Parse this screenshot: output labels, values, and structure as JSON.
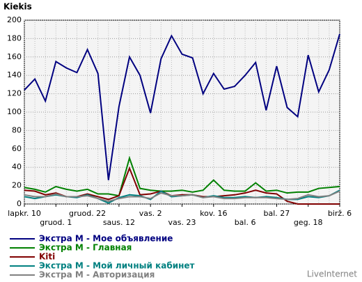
{
  "chart_data": {
    "type": "line",
    "title": "Kiekis",
    "source": "LiveInternet",
    "categories": [
      "lapkr. 10",
      null,
      null,
      "gruod. 1",
      null,
      null,
      "gruod. 22",
      null,
      null,
      "saus. 12",
      null,
      null,
      "vas. 2",
      null,
      null,
      "vas. 23",
      null,
      null,
      "kov. 16",
      null,
      null,
      "bal. 6",
      null,
      null,
      "bal. 27",
      null,
      null,
      "geg. 18",
      null,
      null,
      "birž. 6"
    ],
    "series": [
      {
        "name": "Экстра М - Мое объявление",
        "color": "#000080",
        "values": [
          124,
          136,
          112,
          155,
          148,
          143,
          168,
          142,
          26,
          106,
          160,
          140,
          99,
          158,
          183,
          163,
          159,
          120,
          142,
          125,
          128,
          140,
          154,
          102,
          150,
          105,
          95,
          162,
          122,
          146,
          185
        ]
      },
      {
        "name": "Экстра М - Главная",
        "color": "#008000",
        "values": [
          18,
          16,
          13,
          19,
          16,
          14,
          16,
          11,
          11,
          9,
          50,
          17,
          15,
          14,
          14,
          15,
          13,
          15,
          26,
          15,
          14,
          14,
          23,
          14,
          15,
          12,
          13,
          13,
          17,
          18,
          19
        ]
      },
      {
        "name": "Kiti",
        "color": "#800000",
        "values": [
          15,
          14,
          10,
          12,
          8,
          8,
          11,
          8,
          5,
          9,
          39,
          10,
          11,
          14,
          9,
          10,
          10,
          8,
          8,
          9,
          10,
          12,
          15,
          12,
          11,
          3,
          0,
          0,
          0,
          0,
          0
        ]
      },
      {
        "name": "Экстра М - Мой личный кабинет",
        "color": "#008080",
        "values": [
          8,
          6,
          8,
          10,
          8,
          7,
          10,
          6,
          1,
          7,
          10,
          9,
          5,
          14,
          8,
          9,
          10,
          7,
          9,
          7,
          7,
          8,
          7,
          8,
          7,
          5,
          5,
          8,
          7,
          9,
          15
        ]
      },
      {
        "name": "Экстра М - Авторизация",
        "color": "#808080",
        "values": [
          10,
          8,
          8,
          11,
          8,
          8,
          9,
          6,
          3,
          6,
          8,
          8,
          6,
          12,
          9,
          9,
          10,
          7,
          8,
          6,
          6,
          7,
          7,
          7,
          6,
          5,
          6,
          10,
          8,
          9,
          14
        ]
      }
    ],
    "ylim": [
      0,
      200
    ],
    "yticks": [
      0,
      20,
      40,
      60,
      80,
      100,
      120,
      140,
      160,
      180,
      200
    ],
    "grid": true
  }
}
